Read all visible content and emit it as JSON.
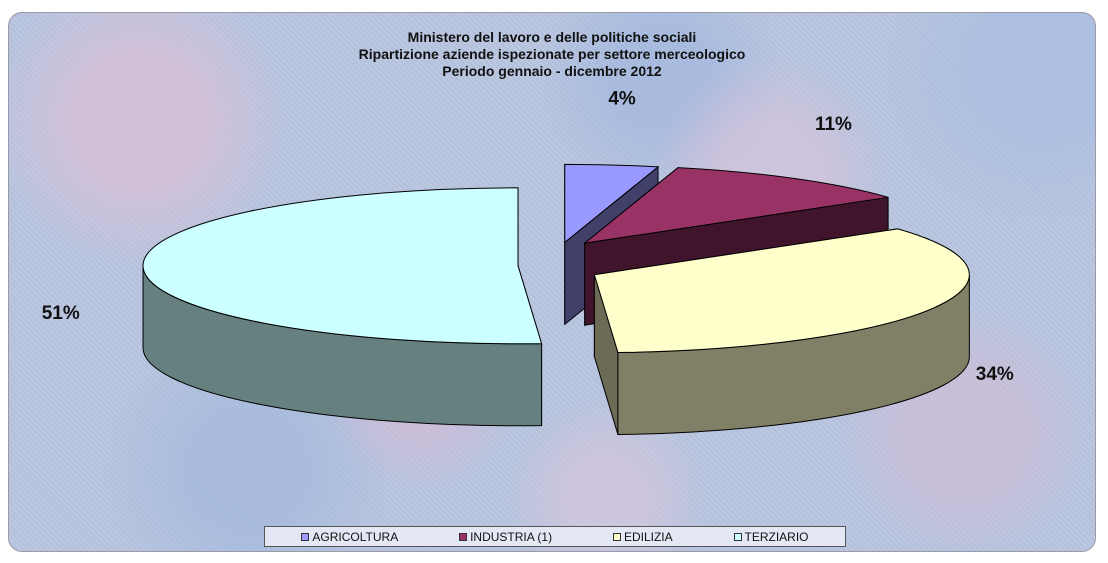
{
  "chart_data": {
    "type": "pie",
    "title_lines": [
      "Ministero del lavoro e delle politiche sociali",
      "Ripartizione aziende ispezionate per settore merceologico",
      "Periodo gennaio - dicembre 2012"
    ],
    "categories": [
      "AGRICOLTURA",
      "INDUSTRIA (1)",
      "EDILIZIA",
      "TERZIARIO"
    ],
    "values": [
      4,
      11,
      34,
      51
    ],
    "data_labels": [
      "4%",
      "11%",
      "34%",
      "51%"
    ],
    "colors": [
      "#9999ff",
      "#993366",
      "#ffffcc",
      "#ccffff"
    ],
    "exploded": true,
    "three_d": true,
    "legend_position": "bottom"
  }
}
